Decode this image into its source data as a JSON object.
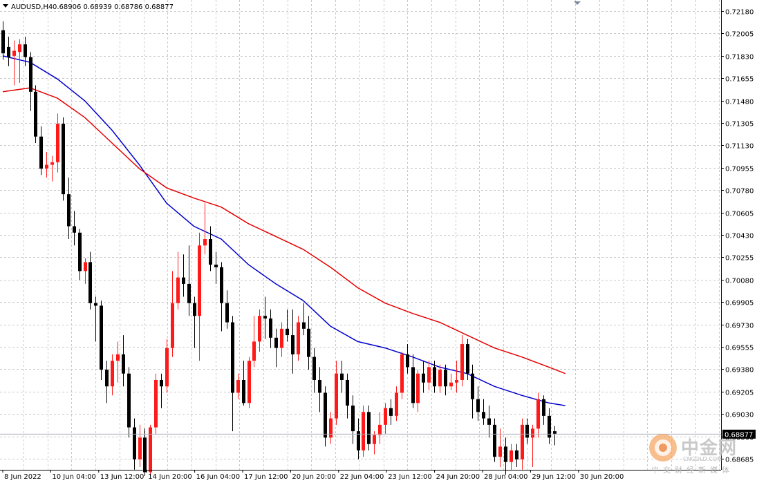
{
  "header": {
    "symbol": "AUDUSD,H4",
    "ohlc": "0.68906 0.68939 0.68786 0.68877"
  },
  "price_axis": {
    "current_price_label": "0.68877",
    "tick_labels": [
      "0.72180",
      "0.72005",
      "0.71830",
      "0.71655",
      "0.71480",
      "0.71305",
      "0.71130",
      "0.70955",
      "0.70780",
      "0.70605",
      "0.70430",
      "0.70255",
      "0.70080",
      "0.69905",
      "0.69730",
      "0.69555",
      "0.69380",
      "0.69205",
      "0.69030",
      "0.68860",
      "0.68685"
    ]
  },
  "time_axis": {
    "labels": [
      "8 Jun 2022",
      "10 Jun 04:00",
      "13 Jun 12:00",
      "14 Jun 20:00",
      "16 Jun 04:00",
      "17 Jun 12:00",
      "20 Jun 20:00",
      "22 Jun 04:00",
      "23 Jun 12:00",
      "24 Jun 20:00",
      "28 Jun 04:00",
      "29 Jun 12:00",
      "30 Jun 20:00"
    ]
  },
  "watermark": {
    "brand": "中金网",
    "site": "CNGOLD.COM",
    "tagline": "中文财经新媒体"
  },
  "colors": {
    "bull": "#ff1a1a",
    "bear": "#000000",
    "ma_fast": "#0000cc",
    "ma_slow": "#e60000",
    "grid": "#c8c8c8"
  },
  "chart_data": {
    "type": "candlestick",
    "symbol": "AUDUSD",
    "timeframe": "H4",
    "y_range": [
      0.6858,
      0.7226
    ],
    "candles": [
      {
        "o": 0.7203,
        "h": 0.721,
        "l": 0.718,
        "c": 0.7185
      },
      {
        "o": 0.719,
        "h": 0.7198,
        "l": 0.7175,
        "c": 0.7182
      },
      {
        "o": 0.7183,
        "h": 0.7195,
        "l": 0.716,
        "c": 0.7187
      },
      {
        "o": 0.7186,
        "h": 0.7196,
        "l": 0.7162,
        "c": 0.7192
      },
      {
        "o": 0.7192,
        "h": 0.7198,
        "l": 0.7175,
        "c": 0.7182
      },
      {
        "o": 0.7182,
        "h": 0.7186,
        "l": 0.714,
        "c": 0.7155
      },
      {
        "o": 0.7155,
        "h": 0.716,
        "l": 0.7115,
        "c": 0.712
      },
      {
        "o": 0.712,
        "h": 0.7128,
        "l": 0.709,
        "c": 0.7095
      },
      {
        "o": 0.7095,
        "h": 0.7108,
        "l": 0.7088,
        "c": 0.7098
      },
      {
        "o": 0.7098,
        "h": 0.7105,
        "l": 0.7085,
        "c": 0.71
      },
      {
        "o": 0.71,
        "h": 0.7138,
        "l": 0.7092,
        "c": 0.713
      },
      {
        "o": 0.713,
        "h": 0.7135,
        "l": 0.707,
        "c": 0.7075
      },
      {
        "o": 0.7075,
        "h": 0.7088,
        "l": 0.704,
        "c": 0.705
      },
      {
        "o": 0.705,
        "h": 0.7062,
        "l": 0.7035,
        "c": 0.7045
      },
      {
        "o": 0.7045,
        "h": 0.7048,
        "l": 0.7008,
        "c": 0.7015
      },
      {
        "o": 0.7015,
        "h": 0.7025,
        "l": 0.7005,
        "c": 0.7022
      },
      {
        "o": 0.7022,
        "h": 0.703,
        "l": 0.6985,
        "c": 0.699
      },
      {
        "o": 0.699,
        "h": 0.6995,
        "l": 0.696,
        "c": 0.6988
      },
      {
        "o": 0.6988,
        "h": 0.6992,
        "l": 0.693,
        "c": 0.6938
      },
      {
        "o": 0.6938,
        "h": 0.6945,
        "l": 0.6912,
        "c": 0.6925
      },
      {
        "o": 0.6925,
        "h": 0.695,
        "l": 0.6918,
        "c": 0.6945
      },
      {
        "o": 0.6945,
        "h": 0.696,
        "l": 0.6928,
        "c": 0.695
      },
      {
        "o": 0.695,
        "h": 0.6965,
        "l": 0.6925,
        "c": 0.6935
      },
      {
        "o": 0.6935,
        "h": 0.694,
        "l": 0.6885,
        "c": 0.6893
      },
      {
        "o": 0.6893,
        "h": 0.69,
        "l": 0.686,
        "c": 0.6868
      },
      {
        "o": 0.6868,
        "h": 0.6895,
        "l": 0.6862,
        "c": 0.6885
      },
      {
        "o": 0.6885,
        "h": 0.6892,
        "l": 0.6855,
        "c": 0.6858
      },
      {
        "o": 0.6858,
        "h": 0.6895,
        "l": 0.6855,
        "c": 0.6893
      },
      {
        "o": 0.6893,
        "h": 0.6935,
        "l": 0.6888,
        "c": 0.693
      },
      {
        "o": 0.693,
        "h": 0.6935,
        "l": 0.6908,
        "c": 0.6925
      },
      {
        "o": 0.6925,
        "h": 0.6962,
        "l": 0.692,
        "c": 0.6955
      },
      {
        "o": 0.6955,
        "h": 0.7015,
        "l": 0.6948,
        "c": 0.699
      },
      {
        "o": 0.699,
        "h": 0.703,
        "l": 0.6985,
        "c": 0.701
      },
      {
        "o": 0.701,
        "h": 0.7028,
        "l": 0.6995,
        "c": 0.7005
      },
      {
        "o": 0.7005,
        "h": 0.7035,
        "l": 0.698,
        "c": 0.699
      },
      {
        "o": 0.699,
        "h": 0.6995,
        "l": 0.6955,
        "c": 0.698
      },
      {
        "o": 0.698,
        "h": 0.7045,
        "l": 0.6945,
        "c": 0.7035
      },
      {
        "o": 0.7035,
        "h": 0.7068,
        "l": 0.7028,
        "c": 0.704
      },
      {
        "o": 0.704,
        "h": 0.705,
        "l": 0.7015,
        "c": 0.702
      },
      {
        "o": 0.702,
        "h": 0.703,
        "l": 0.7005,
        "c": 0.7018
      },
      {
        "o": 0.7018,
        "h": 0.7022,
        "l": 0.6968,
        "c": 0.699
      },
      {
        "o": 0.699,
        "h": 0.7,
        "l": 0.697,
        "c": 0.6975
      },
      {
        "o": 0.6975,
        "h": 0.698,
        "l": 0.689,
        "c": 0.692
      },
      {
        "o": 0.692,
        "h": 0.6935,
        "l": 0.6915,
        "c": 0.693
      },
      {
        "o": 0.693,
        "h": 0.6945,
        "l": 0.691,
        "c": 0.6912
      },
      {
        "o": 0.6912,
        "h": 0.6948,
        "l": 0.6908,
        "c": 0.6945
      },
      {
        "o": 0.6945,
        "h": 0.698,
        "l": 0.694,
        "c": 0.696
      },
      {
        "o": 0.696,
        "h": 0.6985,
        "l": 0.6952,
        "c": 0.698
      },
      {
        "o": 0.698,
        "h": 0.6995,
        "l": 0.6962,
        "c": 0.6978
      },
      {
        "o": 0.6978,
        "h": 0.6985,
        "l": 0.6955,
        "c": 0.6963
      },
      {
        "o": 0.6963,
        "h": 0.697,
        "l": 0.694,
        "c": 0.6955
      },
      {
        "o": 0.6955,
        "h": 0.6975,
        "l": 0.6948,
        "c": 0.697
      },
      {
        "o": 0.697,
        "h": 0.6985,
        "l": 0.696,
        "c": 0.6965
      },
      {
        "o": 0.6965,
        "h": 0.6985,
        "l": 0.6935,
        "c": 0.695
      },
      {
        "o": 0.695,
        "h": 0.698,
        "l": 0.6945,
        "c": 0.6975
      },
      {
        "o": 0.6975,
        "h": 0.699,
        "l": 0.6965,
        "c": 0.697
      },
      {
        "o": 0.697,
        "h": 0.698,
        "l": 0.6938,
        "c": 0.6948
      },
      {
        "o": 0.6948,
        "h": 0.6955,
        "l": 0.692,
        "c": 0.693
      },
      {
        "o": 0.693,
        "h": 0.694,
        "l": 0.6905,
        "c": 0.692
      },
      {
        "o": 0.692,
        "h": 0.6925,
        "l": 0.6878,
        "c": 0.6885
      },
      {
        "o": 0.6885,
        "h": 0.6905,
        "l": 0.688,
        "c": 0.69
      },
      {
        "o": 0.69,
        "h": 0.6945,
        "l": 0.6895,
        "c": 0.6935
      },
      {
        "o": 0.6935,
        "h": 0.6945,
        "l": 0.692,
        "c": 0.693
      },
      {
        "o": 0.693,
        "h": 0.6935,
        "l": 0.69,
        "c": 0.691
      },
      {
        "o": 0.691,
        "h": 0.6918,
        "l": 0.688,
        "c": 0.689
      },
      {
        "o": 0.689,
        "h": 0.69,
        "l": 0.6868,
        "c": 0.6875
      },
      {
        "o": 0.6875,
        "h": 0.691,
        "l": 0.687,
        "c": 0.6905
      },
      {
        "o": 0.6905,
        "h": 0.691,
        "l": 0.6875,
        "c": 0.688
      },
      {
        "o": 0.688,
        "h": 0.689,
        "l": 0.6872,
        "c": 0.6887
      },
      {
        "o": 0.6887,
        "h": 0.6905,
        "l": 0.688,
        "c": 0.6895
      },
      {
        "o": 0.6895,
        "h": 0.6912,
        "l": 0.6888,
        "c": 0.6908
      },
      {
        "o": 0.6908,
        "h": 0.6915,
        "l": 0.6895,
        "c": 0.6902
      },
      {
        "o": 0.6902,
        "h": 0.6925,
        "l": 0.6898,
        "c": 0.692
      },
      {
        "o": 0.692,
        "h": 0.6952,
        "l": 0.6915,
        "c": 0.695
      },
      {
        "o": 0.695,
        "h": 0.6958,
        "l": 0.6935,
        "c": 0.694
      },
      {
        "o": 0.694,
        "h": 0.695,
        "l": 0.6908,
        "c": 0.6912
      },
      {
        "o": 0.6912,
        "h": 0.6938,
        "l": 0.6905,
        "c": 0.6935
      },
      {
        "o": 0.6935,
        "h": 0.6945,
        "l": 0.692,
        "c": 0.6928
      },
      {
        "o": 0.6928,
        "h": 0.6945,
        "l": 0.6922,
        "c": 0.694
      },
      {
        "o": 0.694,
        "h": 0.6945,
        "l": 0.692,
        "c": 0.6925
      },
      {
        "o": 0.6925,
        "h": 0.6942,
        "l": 0.692,
        "c": 0.6938
      },
      {
        "o": 0.6938,
        "h": 0.6942,
        "l": 0.6918,
        "c": 0.6925
      },
      {
        "o": 0.6925,
        "h": 0.6935,
        "l": 0.6922,
        "c": 0.6928
      },
      {
        "o": 0.6928,
        "h": 0.6945,
        "l": 0.692,
        "c": 0.693
      },
      {
        "o": 0.693,
        "h": 0.6965,
        "l": 0.6925,
        "c": 0.6958
      },
      {
        "o": 0.6958,
        "h": 0.6962,
        "l": 0.693,
        "c": 0.6935
      },
      {
        "o": 0.6935,
        "h": 0.6942,
        "l": 0.69,
        "c": 0.6915
      },
      {
        "o": 0.6915,
        "h": 0.6925,
        "l": 0.6898,
        "c": 0.6905
      },
      {
        "o": 0.6905,
        "h": 0.6915,
        "l": 0.6895,
        "c": 0.69
      },
      {
        "o": 0.69,
        "h": 0.691,
        "l": 0.6885,
        "c": 0.6895
      },
      {
        "o": 0.6895,
        "h": 0.69,
        "l": 0.6866,
        "c": 0.687
      },
      {
        "o": 0.687,
        "h": 0.6892,
        "l": 0.6862,
        "c": 0.6878
      },
      {
        "o": 0.6878,
        "h": 0.6885,
        "l": 0.6856,
        "c": 0.6866
      },
      {
        "o": 0.6866,
        "h": 0.688,
        "l": 0.686,
        "c": 0.6875
      },
      {
        "o": 0.6875,
        "h": 0.688,
        "l": 0.6862,
        "c": 0.6868
      },
      {
        "o": 0.6868,
        "h": 0.69,
        "l": 0.686,
        "c": 0.6895
      },
      {
        "o": 0.6895,
        "h": 0.69,
        "l": 0.688,
        "c": 0.6885
      },
      {
        "o": 0.6885,
        "h": 0.6895,
        "l": 0.6862,
        "c": 0.6892
      },
      {
        "o": 0.6892,
        "h": 0.692,
        "l": 0.6885,
        "c": 0.6915
      },
      {
        "o": 0.6915,
        "h": 0.6918,
        "l": 0.6895,
        "c": 0.6902
      },
      {
        "o": 0.6902,
        "h": 0.6908,
        "l": 0.688,
        "c": 0.6885
      },
      {
        "o": 0.689,
        "h": 0.6894,
        "l": 0.6879,
        "c": 0.6888
      }
    ],
    "moving_averages": [
      {
        "color": "#0000cc",
        "points": [
          [
            0,
            0.7183
          ],
          [
            5,
            0.7178
          ],
          [
            10,
            0.7165
          ],
          [
            15,
            0.7148
          ],
          [
            20,
            0.7125
          ],
          [
            25,
            0.7098
          ],
          [
            30,
            0.7068
          ],
          [
            35,
            0.705
          ],
          [
            40,
            0.704
          ],
          [
            45,
            0.702
          ],
          [
            50,
            0.7005
          ],
          [
            55,
            0.6992
          ],
          [
            60,
            0.6972
          ],
          [
            65,
            0.696
          ],
          [
            70,
            0.6955
          ],
          [
            75,
            0.6948
          ],
          [
            80,
            0.694
          ],
          [
            85,
            0.6935
          ],
          [
            90,
            0.6925
          ],
          [
            95,
            0.6918
          ],
          [
            100,
            0.6912
          ],
          [
            103,
            0.691
          ]
        ]
      },
      {
        "color": "#e60000",
        "points": [
          [
            0,
            0.7155
          ],
          [
            5,
            0.7158
          ],
          [
            10,
            0.715
          ],
          [
            15,
            0.7135
          ],
          [
            20,
            0.7115
          ],
          [
            25,
            0.7095
          ],
          [
            30,
            0.708
          ],
          [
            35,
            0.7072
          ],
          [
            40,
            0.7065
          ],
          [
            45,
            0.7052
          ],
          [
            50,
            0.7042
          ],
          [
            55,
            0.7032
          ],
          [
            60,
            0.7018
          ],
          [
            65,
            0.7002
          ],
          [
            70,
            0.699
          ],
          [
            75,
            0.6982
          ],
          [
            80,
            0.6975
          ],
          [
            85,
            0.6965
          ],
          [
            90,
            0.6955
          ],
          [
            95,
            0.6948
          ],
          [
            100,
            0.694
          ],
          [
            103,
            0.6935
          ]
        ]
      }
    ]
  }
}
